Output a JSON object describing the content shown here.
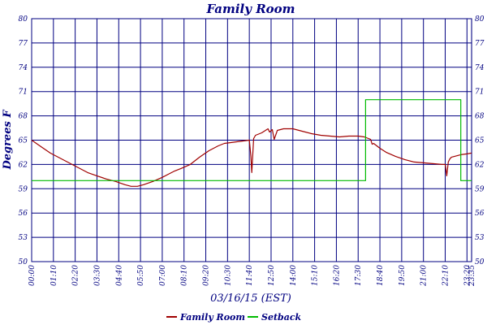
{
  "chart_data": {
    "type": "line",
    "title": "Family Room",
    "xlabel": "03/16/15 (EST)",
    "ylabel": "Degrees F",
    "x_unit": "time of day (hours)",
    "xlim": [
      0,
      23.58
    ],
    "ylim": [
      50,
      80
    ],
    "y_ticks": [
      "50",
      "53",
      "56",
      "59",
      "62",
      "65",
      "68",
      "71",
      "74",
      "77",
      "80"
    ],
    "x_ticks": [
      "00:00",
      "01:10",
      "02:20",
      "03:30",
      "04:40",
      "05:50",
      "07:00",
      "08:10",
      "09:20",
      "10:30",
      "11:40",
      "12:50",
      "14:00",
      "15:10",
      "16:20",
      "17:30",
      "18:40",
      "19:50",
      "21:00",
      "22:10",
      "23:20",
      "23:35"
    ],
    "grid": true,
    "legend_position": "bottom",
    "colors": {
      "frame": "#000080",
      "grid": "#000080",
      "text": "#000080",
      "family_room": "#a00000",
      "setback": "#00bb00"
    },
    "series": [
      {
        "name": "Family Room",
        "color": "#a00000",
        "x": [
          0.0,
          0.5,
          1.0,
          1.5,
          2.0,
          2.5,
          3.0,
          3.5,
          4.0,
          4.5,
          5.0,
          5.33,
          5.67,
          6.0,
          6.5,
          7.0,
          7.33,
          7.67,
          8.0,
          8.5,
          9.0,
          9.5,
          10.0,
          10.33,
          10.67,
          11.0,
          11.33,
          11.67,
          11.75,
          11.8,
          11.9,
          12.0,
          12.33,
          12.67,
          12.75,
          12.9,
          13.0,
          13.17,
          13.5,
          14.0,
          14.5,
          15.0,
          15.5,
          16.0,
          16.5,
          17.0,
          17.5,
          17.83,
          18.17,
          18.25,
          18.33,
          18.67,
          19.0,
          19.5,
          20.0,
          20.5,
          21.0,
          21.5,
          22.0,
          22.17,
          22.25,
          22.33,
          22.42,
          22.5,
          22.67,
          23.0,
          23.33,
          23.58
        ],
        "y": [
          65.0,
          64.2,
          63.4,
          62.8,
          62.2,
          61.6,
          61.0,
          60.6,
          60.2,
          59.9,
          59.5,
          59.3,
          59.3,
          59.5,
          59.9,
          60.4,
          60.8,
          61.2,
          61.5,
          62.0,
          62.9,
          63.7,
          64.3,
          64.6,
          64.7,
          64.8,
          64.9,
          65.0,
          63.0,
          61.0,
          65.2,
          65.6,
          65.9,
          66.4,
          66.0,
          66.3,
          65.1,
          66.2,
          66.4,
          66.4,
          66.1,
          65.8,
          65.6,
          65.5,
          65.4,
          65.5,
          65.5,
          65.4,
          65.1,
          64.5,
          64.6,
          64.0,
          63.5,
          63.0,
          62.6,
          62.3,
          62.2,
          62.1,
          62.0,
          62.0,
          60.6,
          62.3,
          62.7,
          62.9,
          63.0,
          63.2,
          63.3,
          63.4
        ]
      },
      {
        "name": "Setback",
        "color": "#00bb00",
        "x": [
          0.0,
          17.9,
          17.9,
          23.0,
          23.0,
          23.58
        ],
        "y": [
          60.0,
          60.0,
          70.0,
          70.0,
          60.0,
          60.0
        ]
      }
    ],
    "legend": [
      "Family Room",
      "Setback"
    ]
  }
}
